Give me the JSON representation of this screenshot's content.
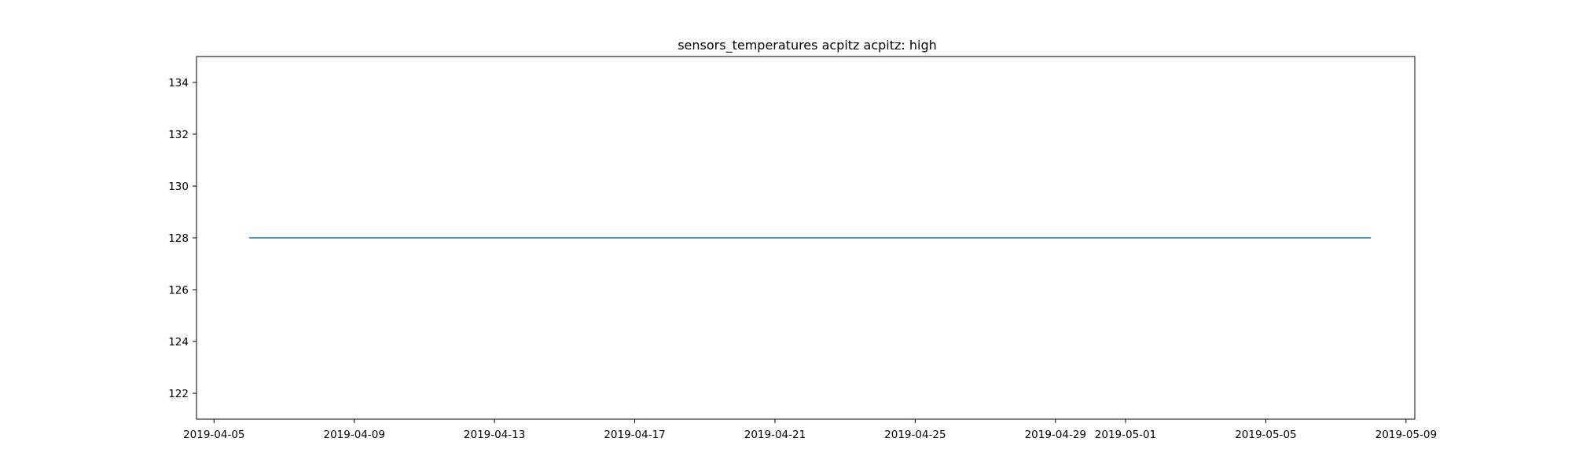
{
  "chart_data": {
    "type": "line",
    "title": "sensors_temperatures acpitz acpitz:  high",
    "xlabel": "",
    "ylabel": "",
    "x_axis_kind": "date",
    "xlim": [
      "2019-04-04T12:00",
      "2019-05-09T06:00"
    ],
    "ylim": [
      121.0,
      135.0
    ],
    "x_ticks": [
      "2019-04-05",
      "2019-04-09",
      "2019-04-13",
      "2019-04-17",
      "2019-04-21",
      "2019-04-25",
      "2019-04-29",
      "2019-05-01",
      "2019-05-05",
      "2019-05-09"
    ],
    "y_ticks": [
      122,
      124,
      126,
      128,
      130,
      132,
      134
    ],
    "grid": false,
    "legend": "none",
    "series": [
      {
        "color": "#1f77b4",
        "x": [
          "2019-04-06",
          "2019-05-08"
        ],
        "y": [
          128,
          128
        ]
      }
    ]
  }
}
